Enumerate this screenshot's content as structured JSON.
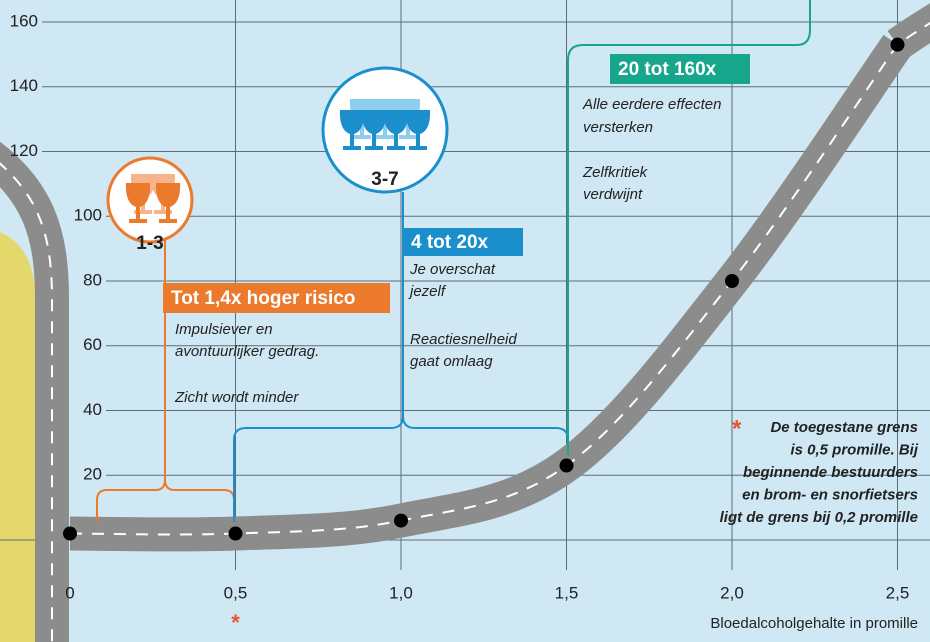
{
  "chart_data": {
    "type": "line",
    "x": [
      0,
      0.5,
      1.0,
      1.5,
      2.0,
      2.5
    ],
    "series": [
      {
        "color": "#000000",
        "values": [
          2,
          2,
          6,
          23,
          80,
          153
        ]
      }
    ],
    "road_color": "#8c8c8c",
    "xlim": [
      0,
      2.5
    ],
    "ylim": [
      0,
      160
    ],
    "xticks": [
      {
        "value": 0,
        "label": "0"
      },
      {
        "value": 0.5,
        "label": "0,5"
      },
      {
        "value": 1.0,
        "label": "1,0"
      },
      {
        "value": 1.5,
        "label": "1,5"
      },
      {
        "value": 2.0,
        "label": "2,0"
      },
      {
        "value": 2.5,
        "label": "2,5"
      }
    ],
    "yticks": [
      20,
      40,
      60,
      80,
      100,
      120,
      140,
      160
    ],
    "grid": true,
    "xlabel": "Bloedalcoholgehalte in promille",
    "annotations": [
      {
        "badge": "1-3",
        "heading": "Tot 1,4x hoger risico",
        "color": "#ec7a2d",
        "lines": [
          "Impulsiever en",
          "avontuurlijker gedrag.",
          "Zicht wordt minder"
        ]
      },
      {
        "badge": "3-7",
        "heading": "4 tot 20x",
        "color": "#1b8fcb",
        "lines": [
          "Je overschat",
          "jezelf",
          "Reactiesnelheid",
          "gaat omlaag"
        ]
      },
      {
        "heading": "20 tot 160x",
        "color": "#17a58c",
        "lines": [
          "Alle eerdere effecten",
          "versterken",
          "Zelfkritiek",
          "verdwijnt"
        ]
      }
    ],
    "note": {
      "marker": "*",
      "marker_color": "#e8542f",
      "lines": [
        "De toegestane grens",
        "is 0,5 promille. Bij",
        "beginnende bestuurders",
        "en brom- en snorfietsers",
        "ligt de grens bij 0,2 promille"
      ]
    }
  }
}
